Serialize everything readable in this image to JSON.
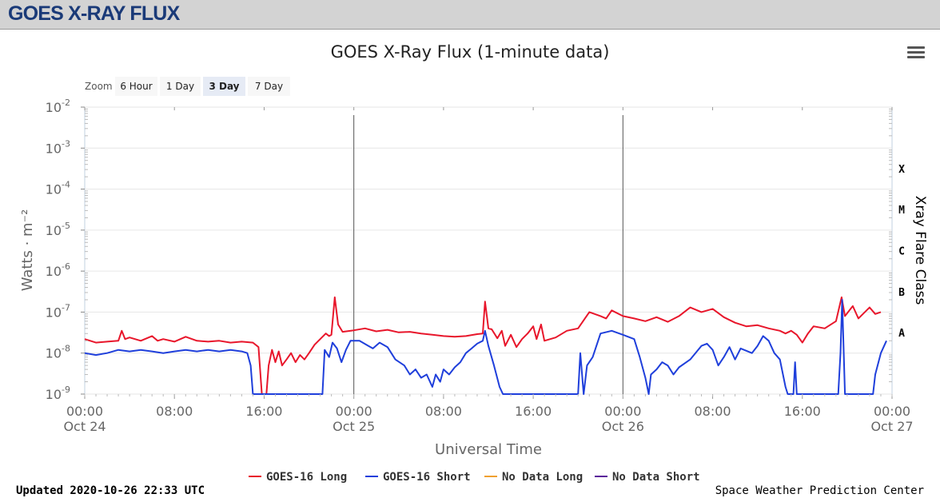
{
  "header": {
    "brand": "GOES X-RAY FLUX"
  },
  "menu": {
    "icon": "hamburger-icon"
  },
  "zoom": {
    "label": "Zoom",
    "buttons": [
      {
        "label": "6 Hour",
        "active": false
      },
      {
        "label": "1 Day",
        "active": false
      },
      {
        "label": "3 Day",
        "active": true
      },
      {
        "label": "7 Day",
        "active": false
      }
    ]
  },
  "chart_data": {
    "type": "line",
    "title": "GOES X-Ray Flux (1-minute data)",
    "xlabel": "Universal Time",
    "ylabel": "Watts · m⁻²",
    "y_scale": "log",
    "ylim": [
      1e-09,
      0.01
    ],
    "xlim_hours": [
      0,
      72
    ],
    "y_ticks": [
      {
        "base": "10",
        "exp": "-2"
      },
      {
        "base": "10",
        "exp": "-3"
      },
      {
        "base": "10",
        "exp": "-4"
      },
      {
        "base": "10",
        "exp": "-5"
      },
      {
        "base": "10",
        "exp": "-6"
      },
      {
        "base": "10",
        "exp": "-7"
      },
      {
        "base": "10",
        "exp": "-8"
      },
      {
        "base": "10",
        "exp": "-9"
      }
    ],
    "x_ticks": [
      {
        "line1": "00:00",
        "line2": "Oct 24"
      },
      {
        "line1": "08:00",
        "line2": ""
      },
      {
        "line1": "16:00",
        "line2": ""
      },
      {
        "line1": "00:00",
        "line2": "Oct 25"
      },
      {
        "line1": "08:00",
        "line2": ""
      },
      {
        "line1": "16:00",
        "line2": ""
      },
      {
        "line1": "00:00",
        "line2": "Oct 26"
      },
      {
        "line1": "08:00",
        "line2": ""
      },
      {
        "line1": "16:00",
        "line2": ""
      },
      {
        "line1": "00:00",
        "line2": "Oct 27"
      }
    ],
    "day_boundaries": [
      24,
      48
    ],
    "grid": true,
    "secondary_axis": {
      "title": "Xray Flare Class",
      "classes": [
        {
          "label": "X",
          "level": 0.0001
        },
        {
          "label": "M",
          "level": 1e-05
        },
        {
          "label": "C",
          "level": 1e-06
        },
        {
          "label": "B",
          "level": 1e-07
        },
        {
          "label": "A",
          "level": 1e-08
        }
      ]
    },
    "legend_position": "bottom",
    "series": [
      {
        "name": "GOES-16 Long",
        "color": "#e8162b",
        "points": [
          [
            0,
            2.2e-08
          ],
          [
            1,
            1.8e-08
          ],
          [
            2,
            1.9e-08
          ],
          [
            3,
            2e-08
          ],
          [
            3.3,
            3.5e-08
          ],
          [
            3.6,
            2.2e-08
          ],
          [
            4,
            2.4e-08
          ],
          [
            5,
            2e-08
          ],
          [
            6,
            2.6e-08
          ],
          [
            6.5,
            2e-08
          ],
          [
            7,
            2.2e-08
          ],
          [
            8,
            1.9e-08
          ],
          [
            9,
            2.5e-08
          ],
          [
            10,
            2e-08
          ],
          [
            11,
            1.9e-08
          ],
          [
            12,
            2e-08
          ],
          [
            13,
            1.8e-08
          ],
          [
            14,
            1.9e-08
          ],
          [
            15,
            1.8e-08
          ],
          [
            15.5,
            1.4e-08
          ],
          [
            15.8,
            1e-09
          ],
          [
            16.2,
            1e-09
          ],
          [
            16.4,
            5e-09
          ],
          [
            16.7,
            1.2e-08
          ],
          [
            17,
            6e-09
          ],
          [
            17.3,
            1.1e-08
          ],
          [
            17.6,
            5e-09
          ],
          [
            18,
            7e-09
          ],
          [
            18.4,
            1e-08
          ],
          [
            18.8,
            6e-09
          ],
          [
            19.2,
            9e-09
          ],
          [
            19.6,
            7e-09
          ],
          [
            20,
            1e-08
          ],
          [
            20.5,
            1.6e-08
          ],
          [
            21,
            2.2e-08
          ],
          [
            21.5,
            3e-08
          ],
          [
            21.8,
            2.6e-08
          ],
          [
            22,
            2.8e-08
          ],
          [
            22.3,
            2.3e-07
          ],
          [
            22.6,
            5e-08
          ],
          [
            23,
            3.3e-08
          ],
          [
            24,
            3.6e-08
          ],
          [
            25,
            4e-08
          ],
          [
            26,
            3.4e-08
          ],
          [
            27,
            3.7e-08
          ],
          [
            28,
            3.2e-08
          ],
          [
            29,
            3.3e-08
          ],
          [
            30,
            3e-08
          ],
          [
            31,
            2.8e-08
          ],
          [
            32,
            2.6e-08
          ],
          [
            33,
            2.5e-08
          ],
          [
            34,
            2.6e-08
          ],
          [
            35,
            2.9e-08
          ],
          [
            35.5,
            3e-08
          ],
          [
            35.7,
            1.8e-07
          ],
          [
            36,
            4e-08
          ],
          [
            36.3,
            3.8e-08
          ],
          [
            36.8,
            2.3e-08
          ],
          [
            37.2,
            3.5e-08
          ],
          [
            37.5,
            1.5e-08
          ],
          [
            38,
            2.8e-08
          ],
          [
            38.5,
            1.4e-08
          ],
          [
            39,
            2.2e-08
          ],
          [
            39.5,
            3e-08
          ],
          [
            40,
            4.5e-08
          ],
          [
            40.3,
            2.2e-08
          ],
          [
            40.7,
            5e-08
          ],
          [
            41,
            2e-08
          ],
          [
            42,
            2.4e-08
          ],
          [
            43,
            3.5e-08
          ],
          [
            44,
            4e-08
          ],
          [
            45,
            1e-07
          ],
          [
            46,
            8e-08
          ],
          [
            46.5,
            7e-08
          ],
          [
            47,
            1.1e-07
          ],
          [
            48,
            8e-08
          ],
          [
            49,
            7e-08
          ],
          [
            50,
            6e-08
          ],
          [
            51,
            7.5e-08
          ],
          [
            52,
            5.8e-08
          ],
          [
            53,
            8e-08
          ],
          [
            54,
            1.3e-07
          ],
          [
            55,
            1e-07
          ],
          [
            56,
            1.2e-07
          ],
          [
            57,
            7.5e-08
          ],
          [
            58,
            5.5e-08
          ],
          [
            59,
            4.5e-08
          ],
          [
            60,
            4.8e-08
          ],
          [
            61,
            4e-08
          ],
          [
            62,
            3.5e-08
          ],
          [
            62.5,
            3e-08
          ],
          [
            63,
            3.5e-08
          ],
          [
            63.5,
            2.8e-08
          ],
          [
            64,
            1.8e-08
          ],
          [
            64.5,
            3e-08
          ],
          [
            65,
            4.5e-08
          ],
          [
            66,
            4e-08
          ],
          [
            67,
            6e-08
          ],
          [
            67.5,
            2.3e-07
          ],
          [
            67.8,
            8e-08
          ],
          [
            68.5,
            1.4e-07
          ],
          [
            69,
            7e-08
          ],
          [
            70,
            1.3e-07
          ],
          [
            70.5,
            9e-08
          ],
          [
            71,
            1e-07
          ]
        ]
      },
      {
        "name": "GOES-16 Short",
        "color": "#1f3fdb",
        "points": [
          [
            0,
            1e-08
          ],
          [
            1,
            9e-09
          ],
          [
            2,
            1e-08
          ],
          [
            3,
            1.2e-08
          ],
          [
            4,
            1.1e-08
          ],
          [
            5,
            1.2e-08
          ],
          [
            6,
            1.1e-08
          ],
          [
            7,
            1e-08
          ],
          [
            8,
            1.1e-08
          ],
          [
            9,
            1.2e-08
          ],
          [
            10,
            1.1e-08
          ],
          [
            11,
            1.2e-08
          ],
          [
            12,
            1.1e-08
          ],
          [
            13,
            1.2e-08
          ],
          [
            14,
            1.1e-08
          ],
          [
            14.5,
            1e-08
          ],
          [
            14.8,
            5e-09
          ],
          [
            15,
            1e-09
          ],
          [
            21.2,
            1e-09
          ],
          [
            21.4,
            1.2e-08
          ],
          [
            21.8,
            8e-09
          ],
          [
            22.1,
            1.8e-08
          ],
          [
            22.5,
            1.3e-08
          ],
          [
            22.9,
            6e-09
          ],
          [
            23.3,
            1.2e-08
          ],
          [
            23.7,
            2e-08
          ],
          [
            24.5,
            2e-08
          ],
          [
            25.3,
            1.5e-08
          ],
          [
            25.7,
            1.3e-08
          ],
          [
            26.3,
            1.8e-08
          ],
          [
            27,
            1.4e-08
          ],
          [
            27.7,
            7e-09
          ],
          [
            28.5,
            5e-09
          ],
          [
            29,
            3e-09
          ],
          [
            29.5,
            4e-09
          ],
          [
            30,
            2.5e-09
          ],
          [
            30.5,
            3e-09
          ],
          [
            31,
            1.5e-09
          ],
          [
            31.3,
            3e-09
          ],
          [
            31.7,
            2e-09
          ],
          [
            32,
            4e-09
          ],
          [
            32.5,
            3e-09
          ],
          [
            33,
            4.5e-09
          ],
          [
            33.5,
            6e-09
          ],
          [
            34,
            1e-08
          ],
          [
            34.5,
            1.3e-08
          ],
          [
            35,
            1.7e-08
          ],
          [
            35.5,
            2e-08
          ],
          [
            35.7,
            3.5e-08
          ],
          [
            36,
            1.5e-08
          ],
          [
            36.5,
            5e-09
          ],
          [
            37,
            1.5e-09
          ],
          [
            37.3,
            1e-09
          ],
          [
            44,
            1e-09
          ],
          [
            44.2,
            1e-08
          ],
          [
            44.5,
            1e-09
          ],
          [
            44.8,
            5e-09
          ],
          [
            45.3,
            8e-09
          ],
          [
            46,
            3e-08
          ],
          [
            47,
            3.5e-08
          ],
          [
            48,
            2.8e-08
          ],
          [
            49,
            2.2e-08
          ],
          [
            49.5,
            8e-09
          ],
          [
            50,
            2.5e-09
          ],
          [
            50.3,
            1e-09
          ],
          [
            50.5,
            3e-09
          ],
          [
            51,
            4e-09
          ],
          [
            51.5,
            6e-09
          ],
          [
            52,
            5e-09
          ],
          [
            52.5,
            3e-09
          ],
          [
            53,
            4.5e-09
          ],
          [
            54,
            7e-09
          ],
          [
            55,
            1.5e-08
          ],
          [
            55.5,
            1.7e-08
          ],
          [
            56,
            1.2e-08
          ],
          [
            56.5,
            5e-09
          ],
          [
            57,
            8e-09
          ],
          [
            57.5,
            1.4e-08
          ],
          [
            58,
            7e-09
          ],
          [
            58.5,
            1.3e-08
          ],
          [
            59.5,
            1e-08
          ],
          [
            60,
            1.5e-08
          ],
          [
            60.5,
            2.6e-08
          ],
          [
            61,
            2e-08
          ],
          [
            61.5,
            1e-08
          ],
          [
            62,
            7e-09
          ],
          [
            62.5,
            1.5e-09
          ],
          [
            62.7,
            1e-09
          ],
          [
            63.2,
            1e-09
          ],
          [
            63.35,
            6e-09
          ],
          [
            63.5,
            1e-09
          ],
          [
            67.2,
            1e-09
          ],
          [
            67.4,
            1e-08
          ],
          [
            67.55,
            2e-07
          ],
          [
            67.8,
            1e-09
          ],
          [
            70.3,
            1e-09
          ],
          [
            70.5,
            3e-09
          ],
          [
            71,
            1e-08
          ],
          [
            71.5,
            2e-08
          ]
        ]
      },
      {
        "name": "No Data Long",
        "color": "#f0a030",
        "points": []
      },
      {
        "name": "No Data Short",
        "color": "#5a1d9a",
        "points": []
      }
    ]
  },
  "footer": {
    "updated": "Updated 2020-10-26 22:33 UTC",
    "credit": "Space Weather Prediction Center"
  }
}
